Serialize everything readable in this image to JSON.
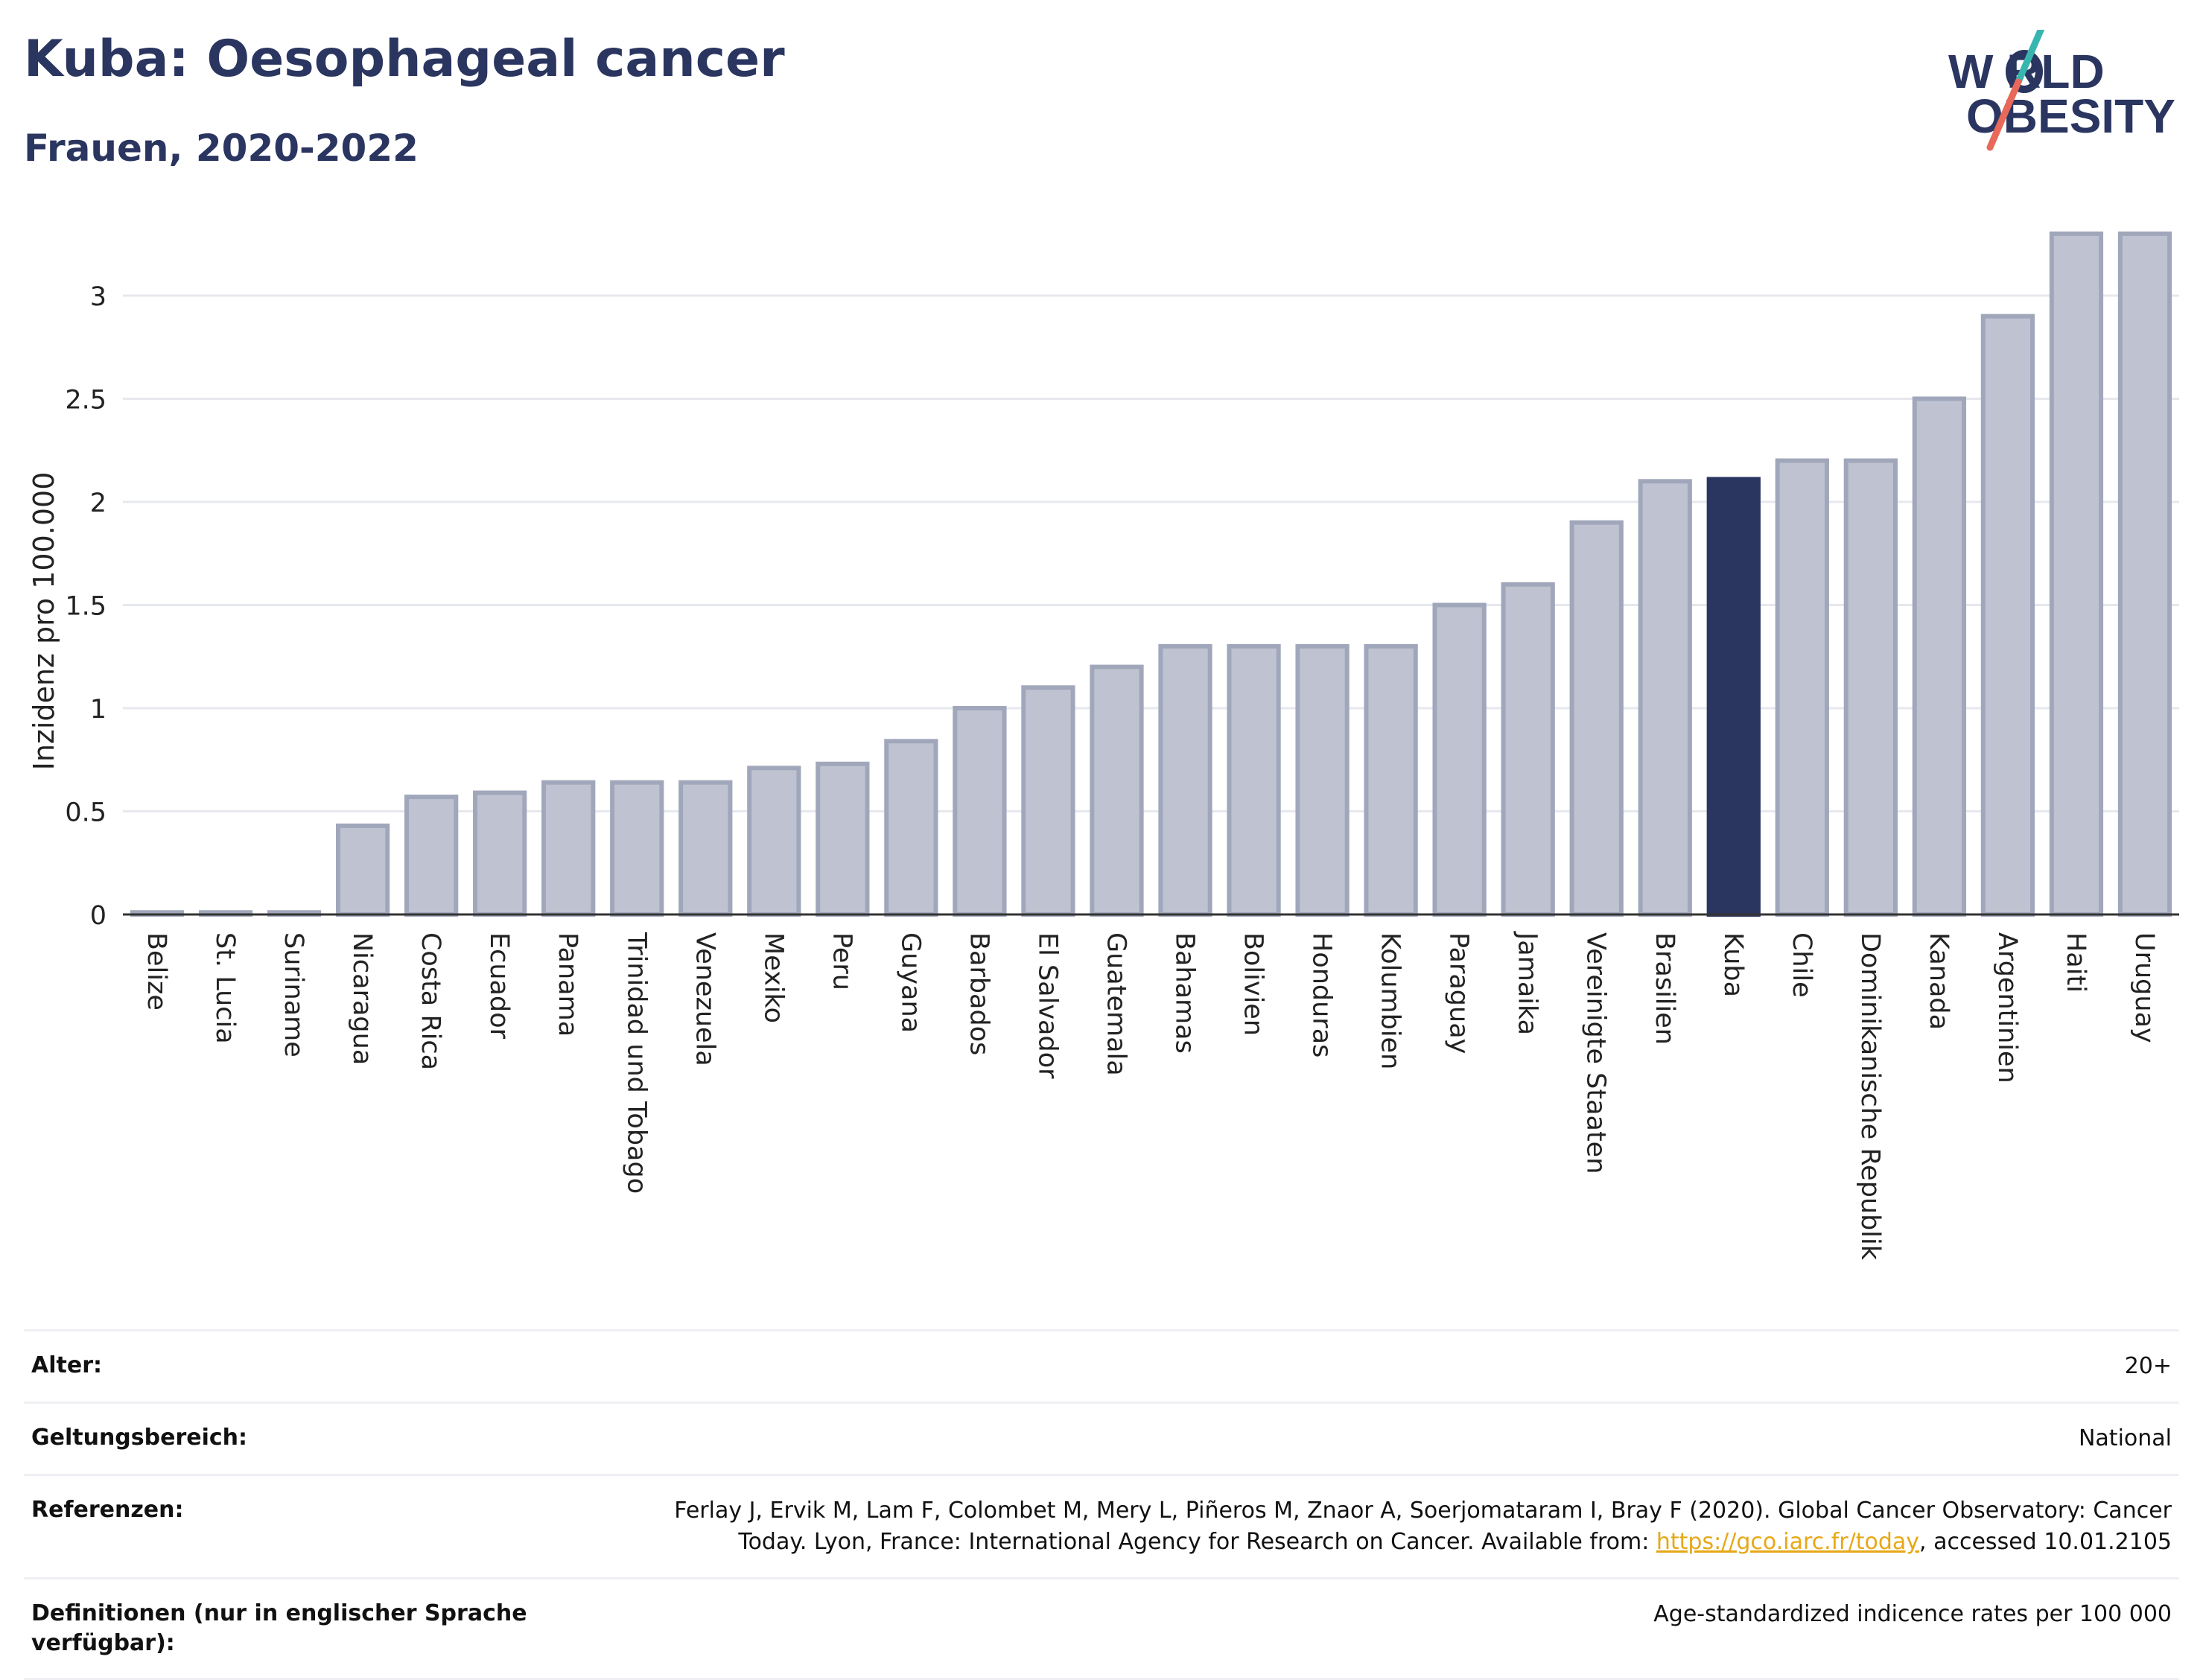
{
  "header": {
    "title": "Kuba: Oesophageal cancer",
    "subtitle": "Frauen, 2020-2022"
  },
  "logo": {
    "line1": "W RLD",
    "line2": "OBESITY",
    "full": "WORLD OBESITY"
  },
  "colors": {
    "bar": "#bfc3d1",
    "bar_border": "#a1a7bb",
    "highlight": "#2a3560",
    "grid": "#e6e8ee",
    "text": "#2a3560"
  },
  "chart_data": {
    "type": "bar",
    "title": "Kuba: Oesophageal cancer",
    "subtitle": "Frauen, 2020-2022",
    "xlabel": "",
    "ylabel": "Inzidenz pro 100.000",
    "ylim": [
      0,
      3.35
    ],
    "yticks": [
      0,
      0.5,
      1,
      1.5,
      2,
      2.5,
      3
    ],
    "ytick_labels": [
      "0",
      "0.5",
      "1",
      "1.5",
      "2",
      "2.5",
      "3"
    ],
    "highlight": "Kuba",
    "categories": [
      "Belize",
      "St. Lucia",
      "Suriname",
      "Nicaragua",
      "Costa Rica",
      "Ecuador",
      "Panama",
      "Trinidad und Tobago",
      "Venezuela",
      "Mexiko",
      "Peru",
      "Guyana",
      "Barbados",
      "El Salvador",
      "Guatemala",
      "Bahamas",
      "Bolivien",
      "Honduras",
      "Kolumbien",
      "Paraguay",
      "Jamaika",
      "Vereinigte Staaten",
      "Brasilien",
      "Kuba",
      "Chile",
      "Dominikanische Republik",
      "Kanada",
      "Argentinien",
      "Haiti",
      "Uruguay"
    ],
    "values": [
      0.01,
      0.01,
      0.01,
      0.43,
      0.57,
      0.59,
      0.64,
      0.64,
      0.64,
      0.71,
      0.73,
      0.84,
      1.0,
      1.1,
      1.2,
      1.3,
      1.3,
      1.3,
      1.3,
      1.5,
      1.6,
      1.9,
      2.1,
      2.11,
      2.2,
      2.2,
      2.5,
      2.9,
      3.3,
      3.3
    ],
    "grid": true,
    "legend": "none"
  },
  "info": {
    "age_label": "Alter:",
    "age_value": "20+",
    "scope_label": "Geltungsbereich:",
    "scope_value": "National",
    "ref_label": "Referenzen:",
    "ref_text_1": "Ferlay J, Ervik M, Lam F, Colombet M, Mery L, Piñeros M, Znaor A, Soerjomataram I, Bray F (2020). Global Cancer Observatory: Cancer",
    "ref_text_2": "Today. Lyon, France: International Agency for Research on Cancer. Available from: ",
    "ref_link": "https://gco.iarc.fr/today",
    "ref_text_3": ", accessed 10.01.2105",
    "def_label": "Definitionen (nur in englischer Sprache verfügbar):",
    "def_value": "Age-standardized indicence rates per 100 000"
  }
}
